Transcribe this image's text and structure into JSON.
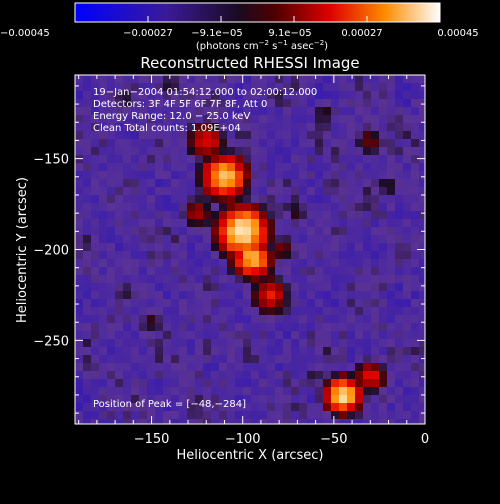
{
  "chart_data": {
    "type": "heatmap",
    "title": "Reconstructed RHESSI Image",
    "xlabel": "Heliocentric X (arcsec)",
    "ylabel": "Heliocentric Y (arcsec)",
    "xlim": [
      -192,
      0
    ],
    "ylim": [
      -296,
      -104
    ],
    "xticks": [
      -150,
      -100,
      -50,
      0
    ],
    "xtick_labels": [
      "−150",
      "−100",
      "−50",
      "0"
    ],
    "yticks": [
      -150,
      -200,
      -250
    ],
    "ytick_labels": [
      "−150",
      "−200",
      "−250"
    ],
    "colorbar": {
      "range": [
        -0.00045,
        0.00045
      ],
      "tick_labels": [
        "−0.00045",
        "−0.00027",
        "−9.1e−05",
        "9.1e−05",
        "0.00027",
        "0.00045"
      ],
      "unit_main": "(photons cm",
      "unit_sup1": "−2",
      "unit_mid": " s",
      "unit_sup2": "−1",
      "unit_mid2": " asec",
      "unit_sup3": "−2",
      "unit_end": ")"
    },
    "annotations": {
      "time": "19−Jan−2004 01:54:12.000 to 02:00:12.000",
      "detectors": "Detectors: 3F 4F 5F 6F 7F 8F, Att 0",
      "energy": "Energy Range: 12.0 − 25.0 keV",
      "method": "Clean     Total counts: 1.09E+04",
      "peak": "Position of Peak = [−48,−284]"
    },
    "features": [
      {
        "x": -110,
        "y": -160,
        "level": 0.92,
        "r": 16
      },
      {
        "x": -100,
        "y": -190,
        "level": 0.98,
        "r": 18
      },
      {
        "x": -95,
        "y": -205,
        "level": 0.9,
        "r": 14
      },
      {
        "x": -120,
        "y": -140,
        "level": 0.7,
        "r": 14
      },
      {
        "x": -125,
        "y": -180,
        "level": 0.62,
        "r": 12
      },
      {
        "x": -85,
        "y": -225,
        "level": 0.7,
        "r": 14
      },
      {
        "x": -78,
        "y": -200,
        "level": 0.55,
        "r": 11
      },
      {
        "x": -70,
        "y": -180,
        "level": 0.5,
        "r": 10
      },
      {
        "x": -50,
        "y": -165,
        "level": 0.45,
        "r": 10
      },
      {
        "x": -30,
        "y": -140,
        "level": 0.55,
        "r": 12
      },
      {
        "x": -15,
        "y": -130,
        "level": 0.45,
        "r": 12
      },
      {
        "x": -20,
        "y": -165,
        "level": 0.5,
        "r": 10
      },
      {
        "x": -10,
        "y": -200,
        "level": 0.42,
        "r": 10
      },
      {
        "x": -45,
        "y": -280,
        "level": 0.95,
        "r": 13
      },
      {
        "x": -30,
        "y": -270,
        "level": 0.7,
        "r": 12
      },
      {
        "x": -60,
        "y": -270,
        "level": 0.45,
        "r": 10
      },
      {
        "x": -150,
        "y": -240,
        "level": 0.5,
        "r": 11
      },
      {
        "x": -165,
        "y": -120,
        "level": 0.45,
        "r": 10
      },
      {
        "x": -140,
        "y": -110,
        "level": 0.5,
        "r": 10
      },
      {
        "x": -160,
        "y": -275,
        "level": 0.3,
        "r": 10
      },
      {
        "x": -120,
        "y": -255,
        "level": 0.45,
        "r": 10
      },
      {
        "x": -55,
        "y": -125,
        "level": 0.5,
        "r": 10
      },
      {
        "x": -180,
        "y": -200,
        "level": 0.35,
        "r": 9
      }
    ]
  }
}
